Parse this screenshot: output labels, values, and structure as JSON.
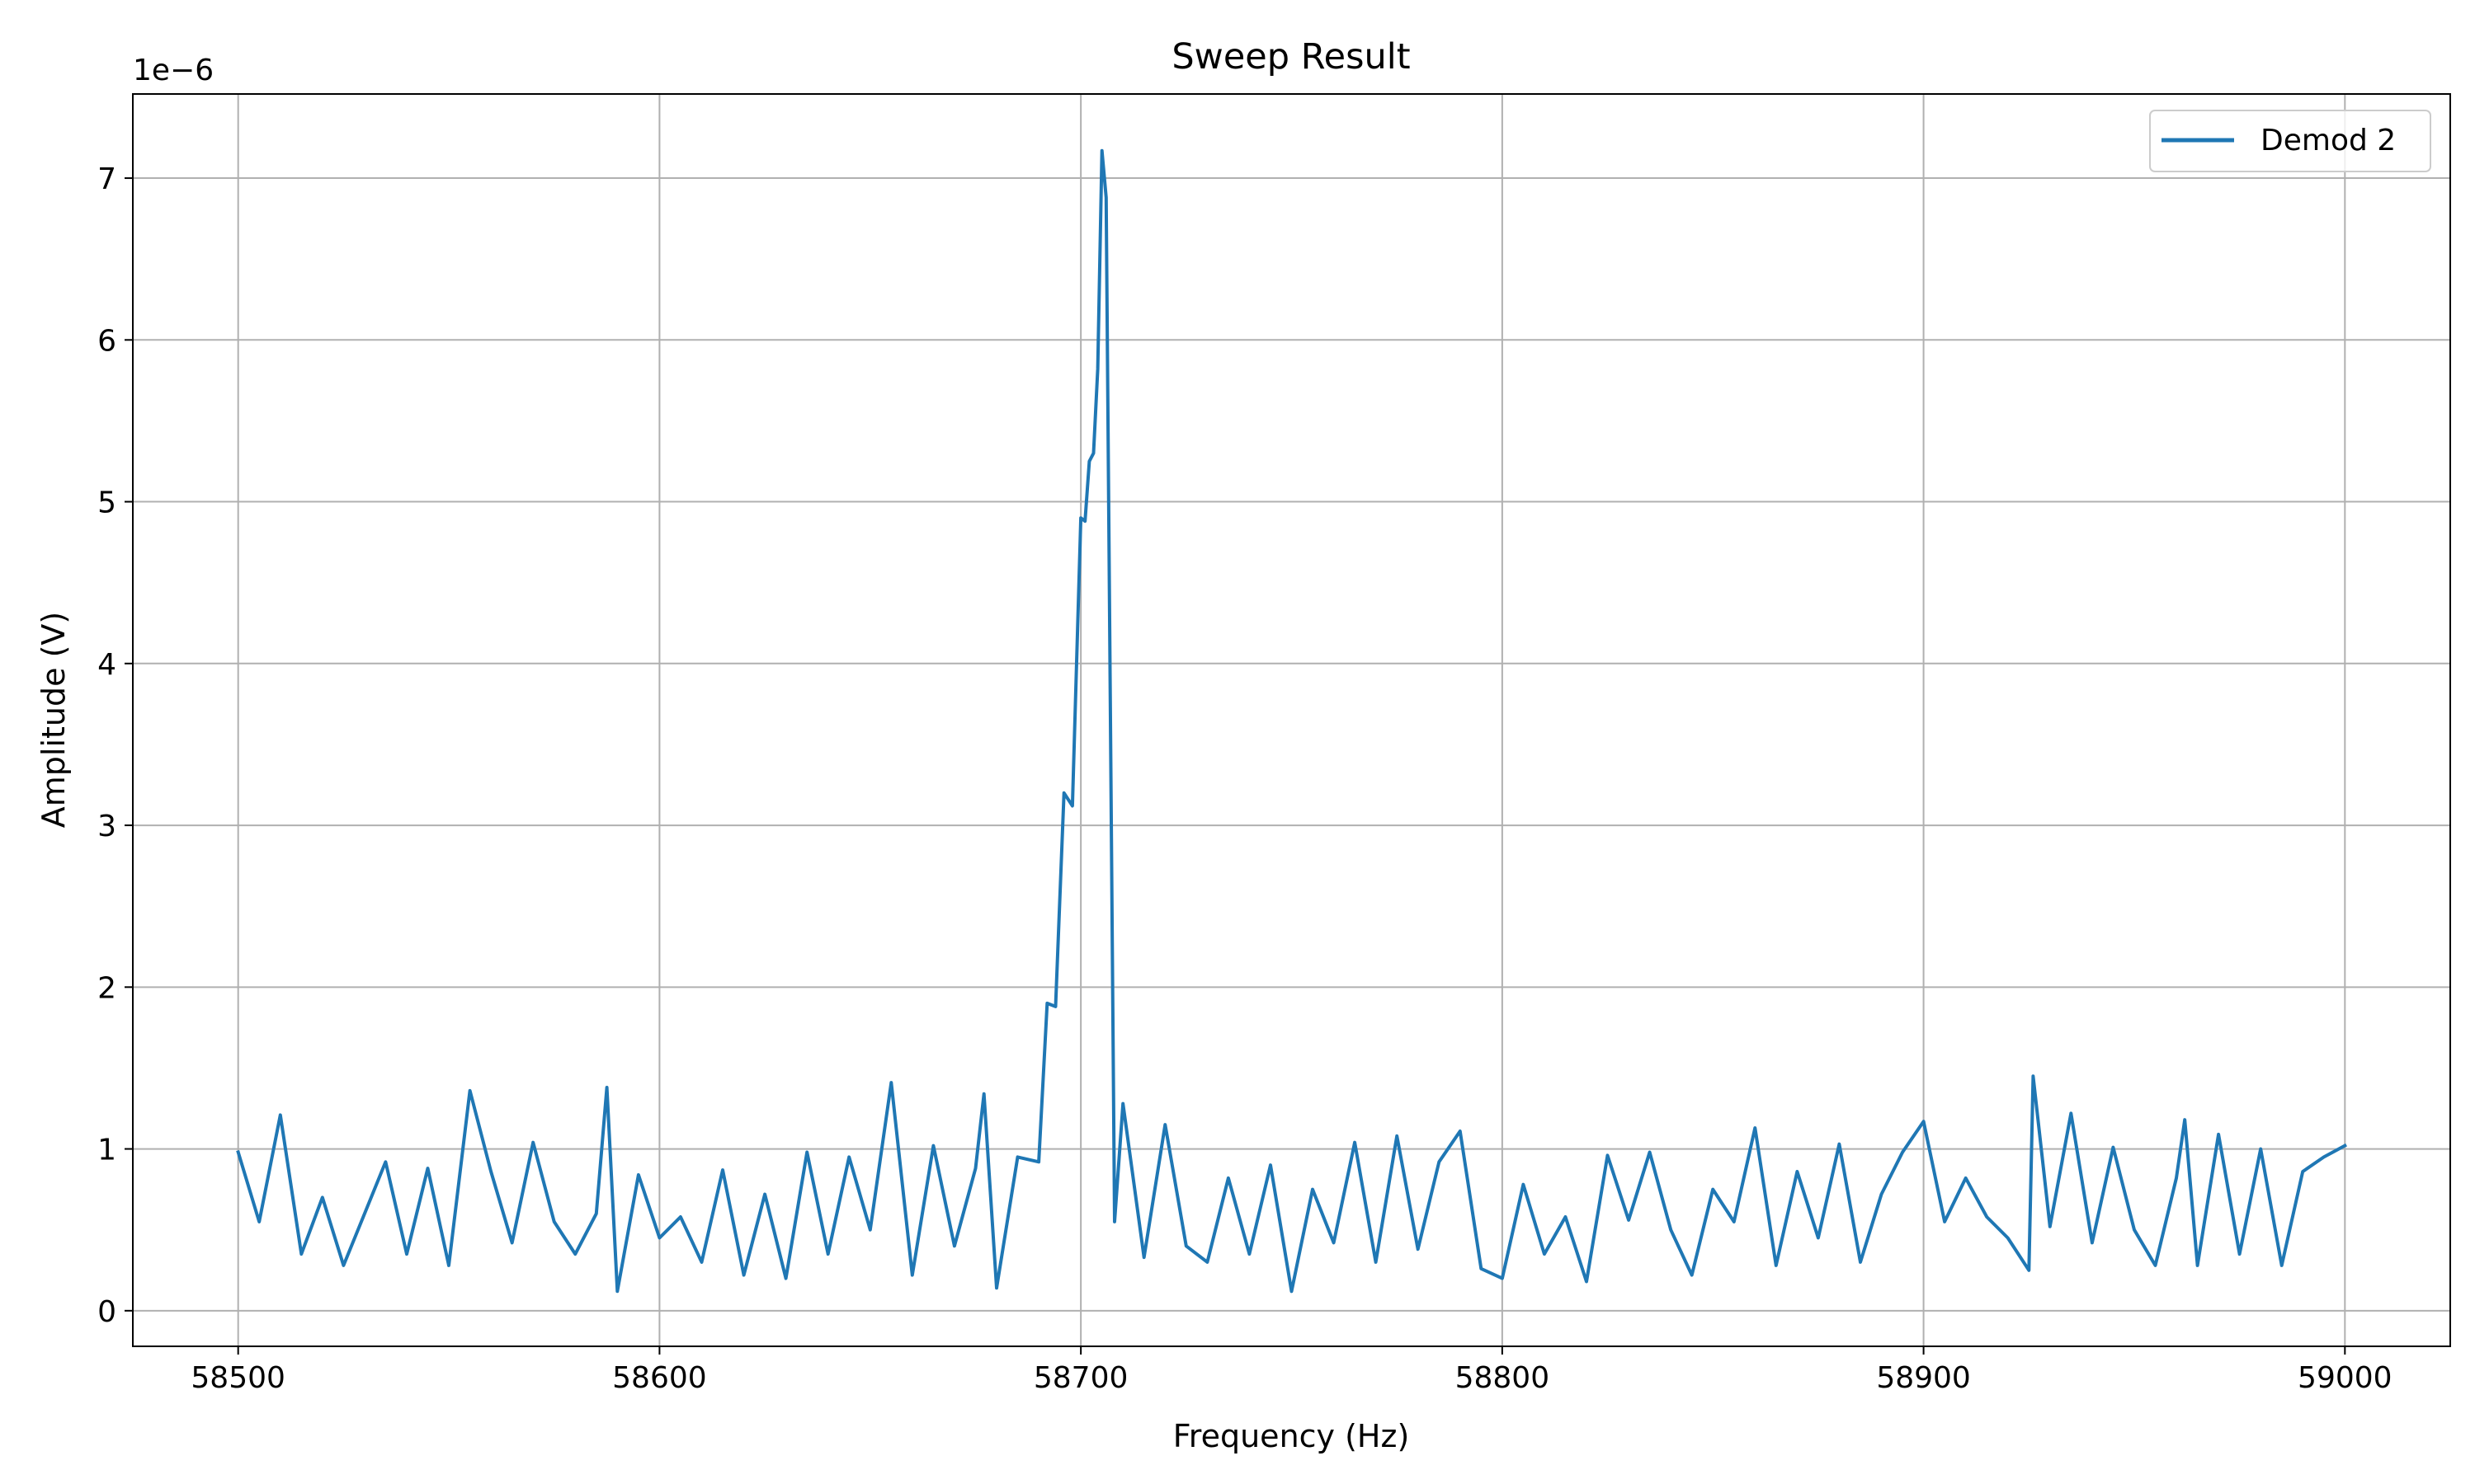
{
  "chart_data": {
    "type": "line",
    "title": "Sweep Result",
    "xlabel": "Frequency (Hz)",
    "ylabel": "Amplitude (V)",
    "y_offset_text": "1e−6",
    "xlim": [
      58475,
      59025
    ],
    "ylim": [
      -0.22,
      7.52
    ],
    "x_ticks": [
      58500,
      58600,
      58700,
      58800,
      58900,
      59000
    ],
    "y_ticks": [
      0,
      1,
      2,
      3,
      4,
      5,
      6,
      7
    ],
    "y_tick_labels": [
      "0",
      "1",
      "2",
      "3",
      "4",
      "5",
      "6",
      "7"
    ],
    "grid": true,
    "legend": "top-right",
    "series": [
      {
        "name": "Demod 2",
        "color": "#1f77b4",
        "x": [
          58500,
          58505,
          58510,
          58515,
          58520,
          58525,
          58530,
          58535,
          58540,
          58545,
          58550,
          58555,
          58560,
          58565,
          58570,
          58575,
          58580,
          58585,
          58587.5,
          58590,
          58595,
          58600,
          58605,
          58610,
          58615,
          58620,
          58625,
          58630,
          58635,
          58640,
          58645,
          58650,
          58655,
          58660,
          58665,
          58670,
          58675,
          58677,
          58680,
          58685,
          58690,
          58692,
          58694,
          58696,
          58698,
          58700,
          58701,
          58702,
          58703,
          58704,
          58705,
          58706,
          58708,
          58710,
          58715,
          58720,
          58725,
          58730,
          58735,
          58740,
          58745,
          58750,
          58755,
          58760,
          58765,
          58770,
          58775,
          58780,
          58785,
          58790,
          58795,
          58800,
          58805,
          58810,
          58815,
          58820,
          58825,
          58830,
          58835,
          58840,
          58845,
          58850,
          58855,
          58860,
          58865,
          58870,
          58875,
          58880,
          58885,
          58890,
          58895,
          58900,
          58905,
          58910,
          58915,
          58920,
          58925,
          58926,
          58930,
          58935,
          58940,
          58945,
          58950,
          58955,
          58960,
          58962,
          58965,
          58970,
          58975,
          58980,
          58985,
          58990,
          58995,
          59000
        ],
        "y": [
          0.98,
          0.55,
          1.21,
          0.35,
          0.7,
          0.28,
          0.6,
          0.92,
          0.35,
          0.88,
          0.28,
          1.36,
          0.86,
          0.42,
          1.04,
          0.55,
          0.35,
          0.6,
          1.38,
          0.12,
          0.84,
          0.45,
          0.58,
          0.3,
          0.87,
          0.22,
          0.72,
          0.2,
          0.98,
          0.35,
          0.95,
          0.5,
          1.41,
          0.22,
          1.02,
          0.4,
          0.88,
          1.34,
          0.14,
          0.95,
          0.92,
          1.9,
          1.88,
          3.2,
          3.12,
          4.9,
          4.88,
          5.25,
          5.3,
          5.82,
          7.17,
          6.88,
          0.55,
          1.28,
          0.33,
          1.15,
          0.4,
          0.3,
          0.82,
          0.35,
          0.9,
          0.12,
          0.75,
          0.42,
          1.04,
          0.3,
          1.08,
          0.38,
          0.92,
          1.11,
          0.26,
          0.2,
          0.78,
          0.35,
          0.58,
          0.18,
          0.96,
          0.56,
          0.98,
          0.5,
          0.22,
          0.75,
          0.55,
          1.13,
          0.28,
          0.86,
          0.45,
          1.03,
          0.3,
          0.72,
          0.98,
          1.17,
          0.55,
          0.82,
          0.58,
          0.45,
          0.25,
          1.45,
          0.52,
          1.22,
          0.42,
          1.01,
          0.5,
          0.28,
          0.82,
          1.18,
          0.28,
          1.09,
          0.35,
          1.0,
          0.28,
          0.86,
          0.95,
          1.02
        ]
      }
    ]
  }
}
